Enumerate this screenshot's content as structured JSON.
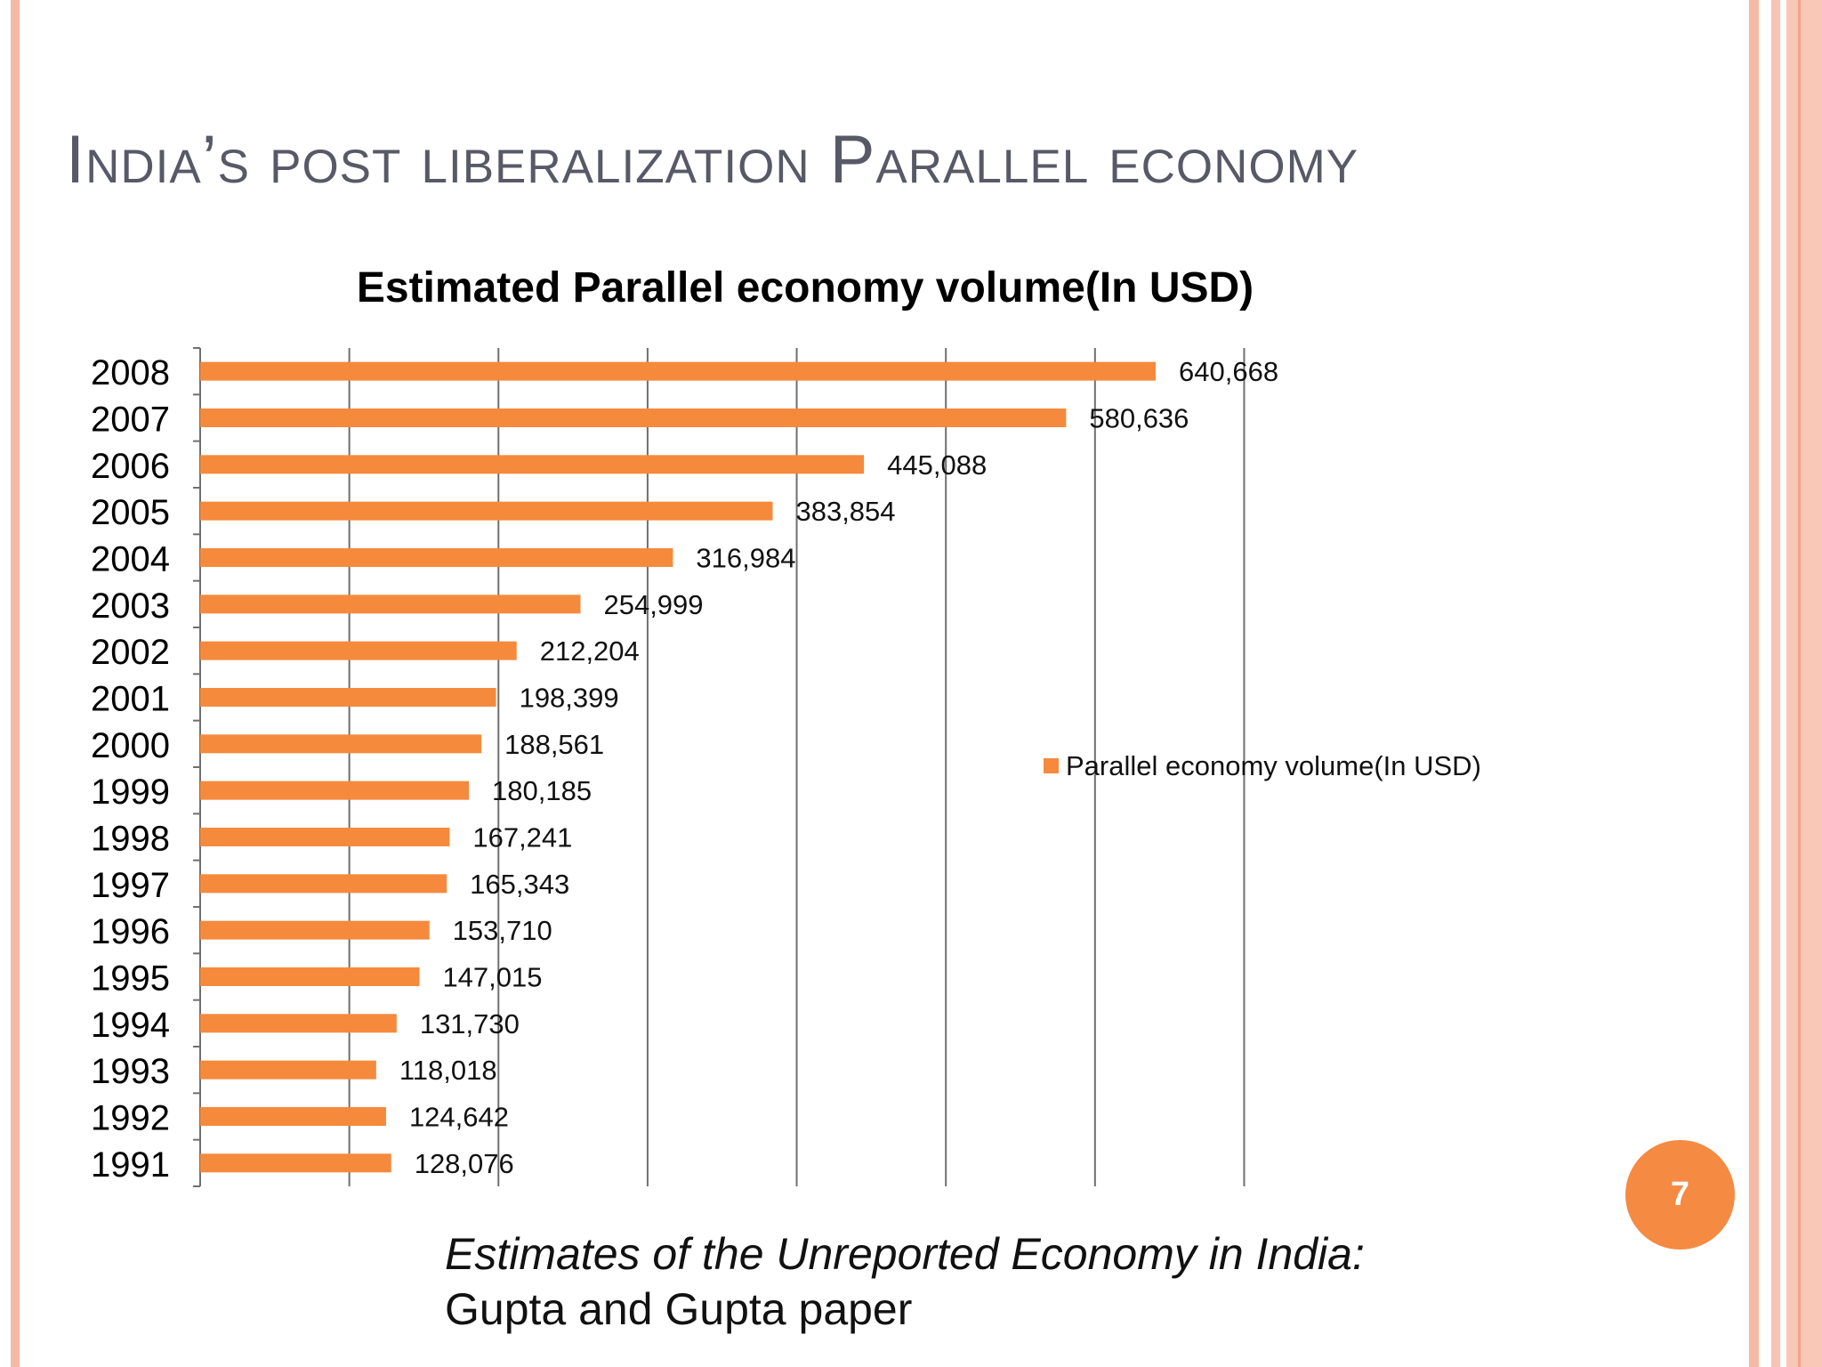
{
  "slide": {
    "title": "India’s post liberalization Parallel economy",
    "page_number": "7",
    "caption_italic": "Estimates of the Unreported Economy in India:",
    "caption_plain": "Gupta and Gupta paper"
  },
  "colors": {
    "bar": "#f58a3d",
    "title_text": "#575a66",
    "border": "#f6b9a5",
    "badge": "#f58a43",
    "gridline": "#6f6f6f"
  },
  "chart_data": {
    "type": "bar",
    "orientation": "horizontal",
    "title": "Estimated Parallel economy volume(In USD)",
    "categories": [
      "2008",
      "2007",
      "2006",
      "2005",
      "2004",
      "2003",
      "2002",
      "2001",
      "2000",
      "1999",
      "1998",
      "1997",
      "1996",
      "1995",
      "1994",
      "1993",
      "1992",
      "1991"
    ],
    "series": [
      {
        "name": "Parallel economy volume(In USD)",
        "values": [
          640668,
          580636,
          445088,
          383854,
          316984,
          254999,
          212204,
          198399,
          188561,
          180185,
          167241,
          165343,
          153710,
          147015,
          131730,
          118018,
          124642,
          128076
        ],
        "labels": [
          "640,668",
          "580,636",
          "445,088",
          "383,854",
          "316,984",
          "254,999",
          "212,204",
          "198,399",
          "188,561",
          "180,185",
          "167,241",
          "165,343",
          "153,710",
          "147,015",
          "131,730",
          "118,018",
          "124,642",
          "128,076"
        ]
      }
    ],
    "xlim": [
      0,
      700000
    ],
    "major_gridline_step": 100000,
    "show_value_axis_labels": false,
    "grid": true,
    "legend_position": "right"
  }
}
